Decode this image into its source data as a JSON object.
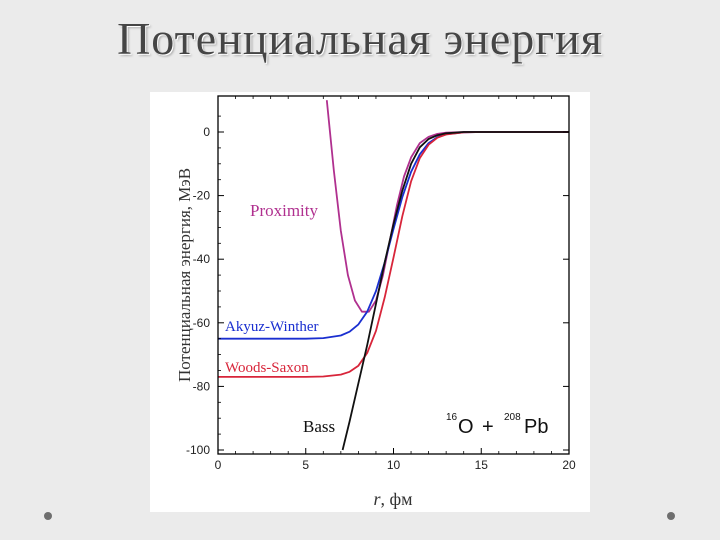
{
  "slide": {
    "title": "Потенциальная энергия"
  },
  "chart_data": {
    "type": "line",
    "xlabel_italic": "r",
    "xlabel_rest": ", фм",
    "ylabel": "Потенциальная энергия, МэВ",
    "xlim": [
      0,
      20
    ],
    "ylim": [
      -100,
      10
    ],
    "xticks": [
      "0",
      "5",
      "10",
      "15",
      "20"
    ],
    "yticks": [
      "0",
      "-20",
      "-40",
      "-60",
      "-80",
      "-100"
    ],
    "grid": false,
    "reaction": {
      "a_mass": "16",
      "a_symbol": "O",
      "plus": "+",
      "b_mass": "208",
      "b_symbol": "Pb"
    },
    "series": [
      {
        "name": "Proximity",
        "color": "#b0308f",
        "x": [
          6.2,
          6.6,
          7.0,
          7.4,
          7.8,
          8.2,
          8.6,
          9.0,
          9.4,
          9.8,
          10.2,
          10.6,
          11.0,
          11.5,
          12.0,
          12.5,
          13.0,
          14.0,
          15.0,
          17.0,
          20.0
        ],
        "y": [
          10,
          -12,
          -31,
          -45,
          -53,
          -56.5,
          -56.5,
          -53,
          -45,
          -34,
          -23,
          -14,
          -8,
          -3.5,
          -1.5,
          -0.6,
          -0.2,
          0,
          0,
          0,
          0
        ]
      },
      {
        "name": "Akyuz-Winther",
        "color": "#1a2fd0",
        "x": [
          0,
          2,
          4,
          5,
          6,
          7,
          7.5,
          8,
          8.5,
          9,
          9.5,
          10,
          10.5,
          11,
          11.5,
          12,
          12.5,
          13,
          14,
          15,
          20
        ],
        "y": [
          -65,
          -65,
          -65,
          -65,
          -64.8,
          -64,
          -62.8,
          -60.5,
          -56.5,
          -50,
          -41,
          -30.5,
          -20.5,
          -12.5,
          -7,
          -3.5,
          -1.6,
          -0.7,
          -0.1,
          0,
          0
        ]
      },
      {
        "name": "Woods-Saxon",
        "color": "#d8253a",
        "x": [
          0,
          2,
          4,
          5,
          6,
          7,
          7.5,
          8,
          8.5,
          9,
          9.5,
          10,
          10.5,
          11,
          11.5,
          12,
          12.5,
          13,
          14,
          15,
          20
        ],
        "y": [
          -77,
          -77,
          -77,
          -77,
          -76.9,
          -76.3,
          -75.4,
          -73.5,
          -69.5,
          -62.5,
          -52,
          -39.5,
          -26.5,
          -15.5,
          -8.2,
          -4,
          -1.8,
          -0.8,
          -0.1,
          0,
          0
        ]
      },
      {
        "name": "Bass",
        "color": "#111111",
        "x": [
          7.1,
          7.5,
          8.0,
          8.5,
          9.0,
          9.5,
          10.0,
          10.5,
          11.0,
          11.5,
          12.0,
          12.5,
          13.0,
          14.0,
          15.0,
          20.0
        ],
        "y": [
          -100,
          -91,
          -79,
          -67,
          -54,
          -41,
          -29,
          -18.5,
          -10,
          -4.8,
          -2.2,
          -1,
          -0.4,
          0,
          0,
          0
        ]
      }
    ]
  }
}
